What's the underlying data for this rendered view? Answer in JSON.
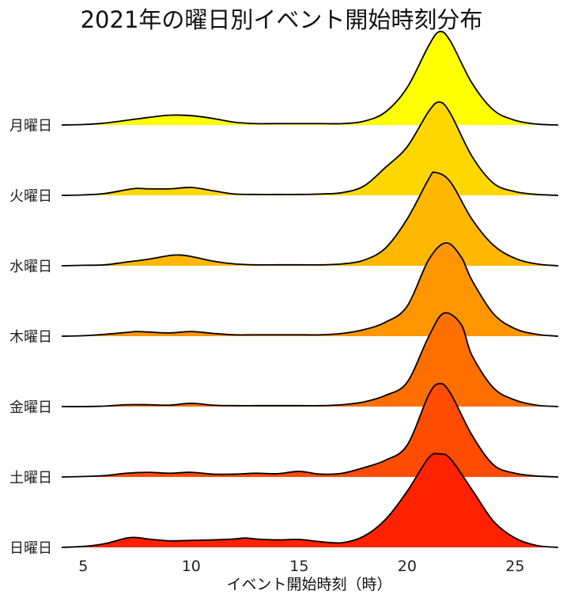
{
  "chart_data": {
    "type": "area",
    "subtype": "ridgeline",
    "title": "2021年の曜日別イベント開始時刻分布",
    "xlabel": "イベント開始時刻（時）",
    "ylabel": "",
    "xlim": [
      4,
      27
    ],
    "xticks": [
      5,
      10,
      15,
      20,
      25
    ],
    "grid": false,
    "legend": "none",
    "series": [
      {
        "name": "月曜日",
        "color": "#ffff00",
        "points": [
          [
            4,
            0.0
          ],
          [
            5,
            0.005
          ],
          [
            6,
            0.02
          ],
          [
            7,
            0.05
          ],
          [
            8,
            0.08
          ],
          [
            9,
            0.105
          ],
          [
            10,
            0.1
          ],
          [
            11,
            0.07
          ],
          [
            12,
            0.03
          ],
          [
            13,
            0.015
          ],
          [
            14,
            0.015
          ],
          [
            15,
            0.015
          ],
          [
            16,
            0.015
          ],
          [
            17,
            0.015
          ],
          [
            18,
            0.04
          ],
          [
            19,
            0.14
          ],
          [
            20,
            0.4
          ],
          [
            21,
            0.85
          ],
          [
            21.5,
            1.0
          ],
          [
            22,
            0.9
          ],
          [
            23,
            0.45
          ],
          [
            24,
            0.16
          ],
          [
            25,
            0.05
          ],
          [
            26,
            0.01
          ],
          [
            27,
            0.0
          ]
        ]
      },
      {
        "name": "火曜日",
        "color": "#ffd700",
        "points": [
          [
            4,
            0.0
          ],
          [
            5,
            0.005
          ],
          [
            6,
            0.02
          ],
          [
            7,
            0.06
          ],
          [
            7.5,
            0.075
          ],
          [
            8,
            0.07
          ],
          [
            9,
            0.07
          ],
          [
            10,
            0.085
          ],
          [
            11,
            0.05
          ],
          [
            12,
            0.015
          ],
          [
            13,
            0.01
          ],
          [
            14,
            0.01
          ],
          [
            15,
            0.01
          ],
          [
            16,
            0.015
          ],
          [
            17,
            0.03
          ],
          [
            18,
            0.1
          ],
          [
            19,
            0.3
          ],
          [
            20,
            0.52
          ],
          [
            21,
            0.9
          ],
          [
            21.5,
            1.0
          ],
          [
            22,
            0.88
          ],
          [
            23,
            0.42
          ],
          [
            24,
            0.13
          ],
          [
            25,
            0.04
          ],
          [
            26,
            0.01
          ],
          [
            27,
            0.0
          ]
        ]
      },
      {
        "name": "水曜日",
        "color": "#ffb800",
        "points": [
          [
            4,
            0.0
          ],
          [
            5,
            0.005
          ],
          [
            6,
            0.01
          ],
          [
            7,
            0.04
          ],
          [
            8,
            0.07
          ],
          [
            9,
            0.11
          ],
          [
            9.5,
            0.115
          ],
          [
            10,
            0.1
          ],
          [
            11,
            0.05
          ],
          [
            12,
            0.02
          ],
          [
            13,
            0.01
          ],
          [
            14,
            0.01
          ],
          [
            15,
            0.01
          ],
          [
            16,
            0.01
          ],
          [
            17,
            0.02
          ],
          [
            18,
            0.06
          ],
          [
            19,
            0.19
          ],
          [
            20,
            0.5
          ],
          [
            21,
            0.93
          ],
          [
            21.3,
            1.0
          ],
          [
            22,
            0.9
          ],
          [
            23,
            0.5
          ],
          [
            24,
            0.22
          ],
          [
            25,
            0.08
          ],
          [
            26,
            0.02
          ],
          [
            27,
            0.0
          ]
        ]
      },
      {
        "name": "木曜日",
        "color": "#ff9500",
        "points": [
          [
            4,
            0.0
          ],
          [
            5,
            0.005
          ],
          [
            6,
            0.02
          ],
          [
            7,
            0.04
          ],
          [
            7.5,
            0.05
          ],
          [
            8,
            0.045
          ],
          [
            9,
            0.035
          ],
          [
            10,
            0.05
          ],
          [
            11,
            0.03
          ],
          [
            12,
            0.015
          ],
          [
            13,
            0.015
          ],
          [
            14,
            0.015
          ],
          [
            15,
            0.015
          ],
          [
            16,
            0.015
          ],
          [
            17,
            0.03
          ],
          [
            18,
            0.07
          ],
          [
            19,
            0.15
          ],
          [
            20,
            0.32
          ],
          [
            21,
            0.82
          ],
          [
            21.8,
            1.0
          ],
          [
            22.5,
            0.85
          ],
          [
            23,
            0.6
          ],
          [
            24,
            0.24
          ],
          [
            25,
            0.08
          ],
          [
            26,
            0.02
          ],
          [
            27,
            0.0
          ]
        ]
      },
      {
        "name": "金曜日",
        "color": "#ff6f00",
        "points": [
          [
            4,
            0.0
          ],
          [
            5,
            0.0
          ],
          [
            6,
            0.005
          ],
          [
            7,
            0.02
          ],
          [
            8,
            0.02
          ],
          [
            9,
            0.015
          ],
          [
            10,
            0.035
          ],
          [
            11,
            0.015
          ],
          [
            12,
            0.01
          ],
          [
            13,
            0.01
          ],
          [
            14,
            0.01
          ],
          [
            15,
            0.01
          ],
          [
            16,
            0.01
          ],
          [
            17,
            0.02
          ],
          [
            18,
            0.05
          ],
          [
            19,
            0.12
          ],
          [
            20,
            0.26
          ],
          [
            21,
            0.75
          ],
          [
            21.7,
            1.0
          ],
          [
            22.5,
            0.88
          ],
          [
            23,
            0.55
          ],
          [
            24,
            0.2
          ],
          [
            25,
            0.07
          ],
          [
            26,
            0.015
          ],
          [
            27,
            0.0
          ]
        ]
      },
      {
        "name": "土曜日",
        "color": "#ff4c00",
        "points": [
          [
            4,
            0.0
          ],
          [
            5,
            0.005
          ],
          [
            6,
            0.015
          ],
          [
            7,
            0.04
          ],
          [
            8,
            0.05
          ],
          [
            9,
            0.04
          ],
          [
            10,
            0.05
          ],
          [
            11,
            0.03
          ],
          [
            12,
            0.03
          ],
          [
            13,
            0.04
          ],
          [
            14,
            0.035
          ],
          [
            15,
            0.06
          ],
          [
            16,
            0.03
          ],
          [
            17,
            0.04
          ],
          [
            18,
            0.1
          ],
          [
            19,
            0.18
          ],
          [
            20,
            0.34
          ],
          [
            21,
            0.88
          ],
          [
            21.5,
            1.0
          ],
          [
            22,
            0.9
          ],
          [
            23,
            0.45
          ],
          [
            24,
            0.13
          ],
          [
            25,
            0.04
          ],
          [
            26,
            0.01
          ],
          [
            27,
            0.0
          ]
        ]
      },
      {
        "name": "日曜日",
        "color": "#ff2200",
        "points": [
          [
            4,
            0.0
          ],
          [
            5,
            0.01
          ],
          [
            6,
            0.04
          ],
          [
            7,
            0.1
          ],
          [
            7.5,
            0.105
          ],
          [
            8,
            0.09
          ],
          [
            9,
            0.07
          ],
          [
            10,
            0.075
          ],
          [
            11,
            0.08
          ],
          [
            12,
            0.09
          ],
          [
            12.5,
            0.1
          ],
          [
            13,
            0.09
          ],
          [
            14,
            0.08
          ],
          [
            15,
            0.085
          ],
          [
            16,
            0.06
          ],
          [
            17,
            0.05
          ],
          [
            18,
            0.12
          ],
          [
            19,
            0.3
          ],
          [
            20,
            0.6
          ],
          [
            21,
            0.96
          ],
          [
            21.5,
            1.0
          ],
          [
            22,
            0.95
          ],
          [
            23,
            0.62
          ],
          [
            24,
            0.28
          ],
          [
            25,
            0.1
          ],
          [
            26,
            0.02
          ],
          [
            27,
            0.0
          ]
        ]
      }
    ]
  }
}
